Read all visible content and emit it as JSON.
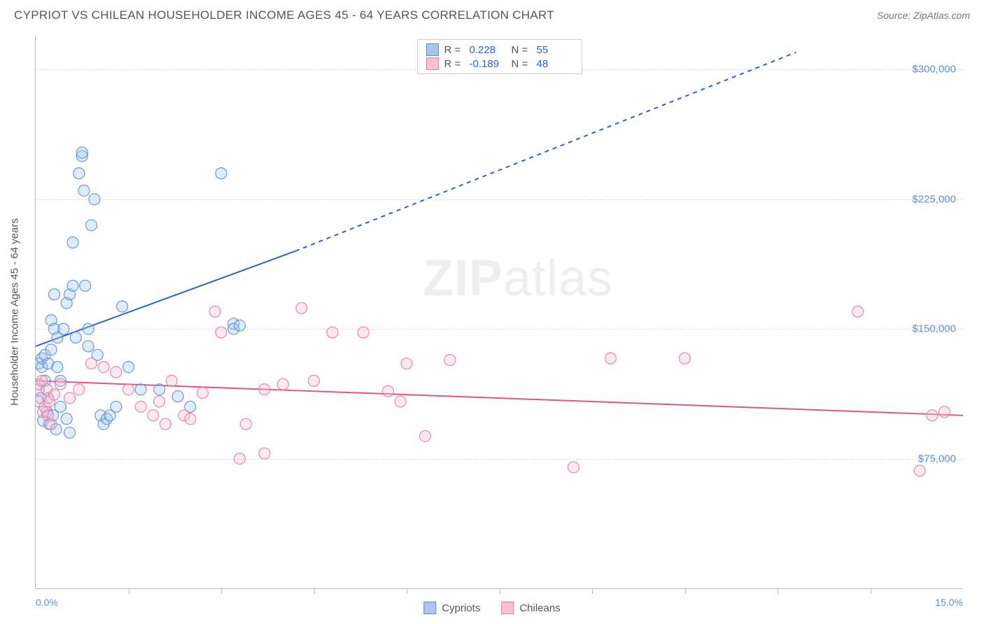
{
  "header": {
    "title": "CYPRIOT VS CHILEAN HOUSEHOLDER INCOME AGES 45 - 64 YEARS CORRELATION CHART",
    "source": "Source: ZipAtlas.com"
  },
  "watermark": {
    "part1": "ZIP",
    "part2": "atlas"
  },
  "chart": {
    "type": "scatter",
    "background_color": "#ffffff",
    "grid_color": "#dddddd",
    "axis_color": "#bbbbbb",
    "ylabel": "Householder Income Ages 45 - 64 years",
    "ylabel_color": "#555555",
    "xlim": [
      0.0,
      15.0
    ],
    "ylim": [
      0,
      320000
    ],
    "yticks": [
      {
        "v": 75000,
        "label": "$75,000"
      },
      {
        "v": 150000,
        "label": "$150,000"
      },
      {
        "v": 225000,
        "label": "$225,000"
      },
      {
        "v": 300000,
        "label": "$300,000"
      }
    ],
    "ytick_color": "#5b8fd6",
    "xticks_minor": [
      1.5,
      3.0,
      4.5,
      6.0,
      7.5,
      9.0,
      10.5,
      12.0,
      13.5
    ],
    "xtick_labels": [
      {
        "v": 0.0,
        "label": "0.0%",
        "color": "#5b8fd6"
      },
      {
        "v": 15.0,
        "label": "15.0%",
        "color": "#5b8fd6"
      }
    ],
    "series": [
      {
        "name": "Cypriots",
        "marker_color": "#5b8fd6",
        "fill_color": "#a7c6ec",
        "marker_radius": 8,
        "trend": {
          "x1": 0.0,
          "y1": 140000,
          "x2": 4.2,
          "y2": 195000,
          "dashed_to_x": 12.3,
          "dashed_to_y": 310000,
          "color": "#2b62c9",
          "width": 2
        },
        "points": [
          [
            0.05,
            130000
          ],
          [
            0.05,
            108000
          ],
          [
            0.05,
            115000
          ],
          [
            0.1,
            128000
          ],
          [
            0.1,
            133000
          ],
          [
            0.12,
            97000
          ],
          [
            0.15,
            120000
          ],
          [
            0.15,
            135000
          ],
          [
            0.18,
            102000
          ],
          [
            0.2,
            110000
          ],
          [
            0.2,
            130000
          ],
          [
            0.22,
            95000
          ],
          [
            0.25,
            138000
          ],
          [
            0.25,
            155000
          ],
          [
            0.28,
            100000
          ],
          [
            0.3,
            150000
          ],
          [
            0.3,
            170000
          ],
          [
            0.33,
            92000
          ],
          [
            0.35,
            128000
          ],
          [
            0.35,
            145000
          ],
          [
            0.4,
            105000
          ],
          [
            0.4,
            120000
          ],
          [
            0.45,
            150000
          ],
          [
            0.5,
            98000
          ],
          [
            0.5,
            165000
          ],
          [
            0.55,
            90000
          ],
          [
            0.55,
            170000
          ],
          [
            0.6,
            200000
          ],
          [
            0.6,
            175000
          ],
          [
            0.65,
            145000
          ],
          [
            0.7,
            240000
          ],
          [
            0.75,
            250000
          ],
          [
            0.75,
            252000
          ],
          [
            0.78,
            230000
          ],
          [
            0.8,
            175000
          ],
          [
            0.85,
            140000
          ],
          [
            0.85,
            150000
          ],
          [
            0.9,
            210000
          ],
          [
            0.95,
            225000
          ],
          [
            1.0,
            135000
          ],
          [
            1.05,
            100000
          ],
          [
            1.1,
            95000
          ],
          [
            1.15,
            98000
          ],
          [
            1.2,
            100000
          ],
          [
            1.3,
            105000
          ],
          [
            1.4,
            163000
          ],
          [
            1.5,
            128000
          ],
          [
            1.7,
            115000
          ],
          [
            2.0,
            115000
          ],
          [
            2.3,
            111000
          ],
          [
            2.5,
            105000
          ],
          [
            3.0,
            240000
          ],
          [
            3.2,
            153000
          ],
          [
            3.2,
            150000
          ],
          [
            3.3,
            152000
          ]
        ]
      },
      {
        "name": "Chileans",
        "marker_color": "#e87aa0",
        "fill_color": "#f6c1d2",
        "marker_radius": 8,
        "trend": {
          "x1": 0.0,
          "y1": 120000,
          "x2": 15.0,
          "y2": 100000,
          "color": "#e05585",
          "width": 2
        },
        "points": [
          [
            0.05,
            118000
          ],
          [
            0.08,
            110000
          ],
          [
            0.1,
            120000
          ],
          [
            0.12,
            102000
          ],
          [
            0.15,
            105000
          ],
          [
            0.18,
            115000
          ],
          [
            0.2,
            100000
          ],
          [
            0.22,
            108000
          ],
          [
            0.25,
            95000
          ],
          [
            0.3,
            112000
          ],
          [
            0.4,
            118000
          ],
          [
            0.55,
            110000
          ],
          [
            0.7,
            115000
          ],
          [
            0.9,
            130000
          ],
          [
            1.1,
            128000
          ],
          [
            1.3,
            125000
          ],
          [
            1.5,
            115000
          ],
          [
            1.7,
            105000
          ],
          [
            1.9,
            100000
          ],
          [
            2.0,
            108000
          ],
          [
            2.1,
            95000
          ],
          [
            2.2,
            120000
          ],
          [
            2.4,
            100000
          ],
          [
            2.5,
            98000
          ],
          [
            2.7,
            113000
          ],
          [
            2.9,
            160000
          ],
          [
            3.0,
            148000
          ],
          [
            3.3,
            75000
          ],
          [
            3.4,
            95000
          ],
          [
            3.7,
            78000
          ],
          [
            3.7,
            115000
          ],
          [
            4.0,
            118000
          ],
          [
            4.3,
            162000
          ],
          [
            4.5,
            120000
          ],
          [
            4.8,
            148000
          ],
          [
            5.3,
            148000
          ],
          [
            5.7,
            114000
          ],
          [
            5.9,
            108000
          ],
          [
            6.0,
            130000
          ],
          [
            6.3,
            88000
          ],
          [
            6.7,
            132000
          ],
          [
            8.7,
            70000
          ],
          [
            9.3,
            133000
          ],
          [
            10.5,
            133000
          ],
          [
            13.3,
            160000
          ],
          [
            14.3,
            68000
          ],
          [
            14.5,
            100000
          ],
          [
            14.7,
            102000
          ]
        ]
      }
    ],
    "stats": [
      {
        "swatch_fill": "#a7c6ec",
        "swatch_border": "#5b8fd6",
        "R": "0.228",
        "R_color": "#2b62c9",
        "N": "55",
        "N_color": "#2b62c9"
      },
      {
        "swatch_fill": "#f6c1d2",
        "swatch_border": "#e87aa0",
        "R": "-0.189",
        "R_color": "#2b62c9",
        "N": "48",
        "N_color": "#2b62c9"
      }
    ],
    "legend": [
      {
        "swatch_fill": "#a7c6ec",
        "swatch_border": "#5b8fd6",
        "label": "Cypriots"
      },
      {
        "swatch_fill": "#f6c1d2",
        "swatch_border": "#e87aa0",
        "label": "Chileans"
      }
    ]
  }
}
